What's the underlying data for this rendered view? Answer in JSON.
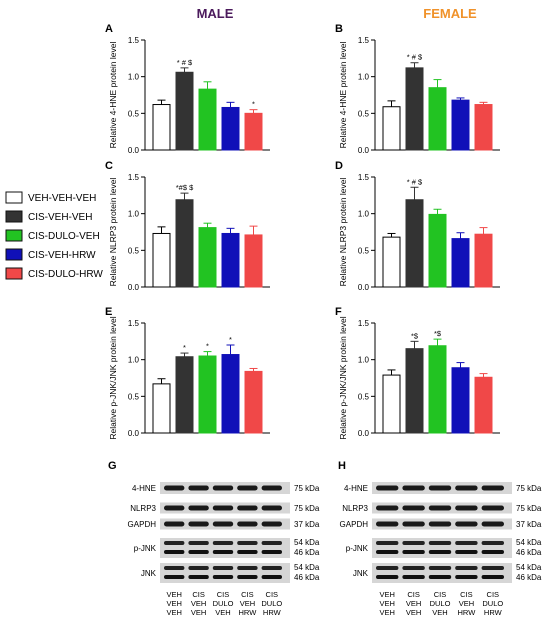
{
  "titles": {
    "male": "MALE",
    "female": "FEMALE"
  },
  "colors": {
    "male_title": "#4b1a5c",
    "female_title": "#f0922a",
    "groups": [
      "#ffffff",
      "#333333",
      "#22c322",
      "#1010b8",
      "#f04848"
    ]
  },
  "legend": [
    "VEH-VEH-VEH",
    "CIS-VEH-VEH",
    "CIS-DULO-VEH",
    "CIS-VEH-HRW",
    "CIS-DULO-HRW"
  ],
  "chart_data": [
    {
      "id": "A",
      "type": "bar",
      "sex": "male",
      "ylabel": "Relative 4-HNE protein level",
      "ylim": [
        0,
        1.5
      ],
      "ticks": [
        "0.0",
        "0.5",
        "1.0",
        "1.5"
      ],
      "categories": [
        "VEH-VEH-VEH",
        "CIS-VEH-VEH",
        "CIS-DULO-VEH",
        "CIS-VEH-HRW",
        "CIS-DULO-HRW"
      ],
      "values": [
        0.62,
        1.06,
        0.83,
        0.58,
        0.5
      ],
      "errors": [
        0.06,
        0.06,
        0.1,
        0.07,
        0.05
      ],
      "annotations": [
        "",
        "* # $",
        "",
        "",
        "*"
      ]
    },
    {
      "id": "B",
      "type": "bar",
      "sex": "female",
      "ylabel": "Relative 4-HNE protein level",
      "ylim": [
        0,
        1.5
      ],
      "ticks": [
        "0.0",
        "0.5",
        "1.0",
        "1.5"
      ],
      "categories": [
        "VEH-VEH-VEH",
        "CIS-VEH-VEH",
        "CIS-DULO-VEH",
        "CIS-VEH-HRW",
        "CIS-DULO-HRW"
      ],
      "values": [
        0.59,
        1.12,
        0.85,
        0.68,
        0.62
      ],
      "errors": [
        0.08,
        0.07,
        0.11,
        0.03,
        0.03
      ],
      "annotations": [
        "",
        "* # $",
        "",
        "",
        ""
      ]
    },
    {
      "id": "C",
      "type": "bar",
      "sex": "male",
      "ylabel": "Relative NLRP3 protein level",
      "ylim": [
        0,
        1.5
      ],
      "ticks": [
        "0.0",
        "0.5",
        "1.0",
        "1.5"
      ],
      "categories": [
        "VEH-VEH-VEH",
        "CIS-VEH-VEH",
        "CIS-DULO-VEH",
        "CIS-VEH-HRW",
        "CIS-DULO-HRW"
      ],
      "values": [
        0.73,
        1.19,
        0.81,
        0.73,
        0.71
      ],
      "errors": [
        0.09,
        0.09,
        0.06,
        0.07,
        0.12
      ],
      "annotations": [
        "",
        "*#$ $",
        "",
        "",
        ""
      ]
    },
    {
      "id": "D",
      "type": "bar",
      "sex": "female",
      "ylabel": "Relative NLRP3 protein level",
      "ylim": [
        0,
        1.5
      ],
      "ticks": [
        "0.0",
        "0.5",
        "1.0",
        "1.5"
      ],
      "categories": [
        "VEH-VEH-VEH",
        "CIS-VEH-VEH",
        "CIS-DULO-VEH",
        "CIS-VEH-HRW",
        "CIS-DULO-HRW"
      ],
      "values": [
        0.68,
        1.19,
        0.99,
        0.66,
        0.72
      ],
      "errors": [
        0.05,
        0.17,
        0.07,
        0.08,
        0.09
      ],
      "annotations": [
        "",
        "* # $",
        "",
        "",
        ""
      ]
    },
    {
      "id": "E",
      "type": "bar",
      "sex": "male",
      "ylabel": "Relative p-JNK/JNK protein level",
      "ylim": [
        0,
        1.5
      ],
      "ticks": [
        "0.0",
        "0.5",
        "1.0",
        "1.5"
      ],
      "categories": [
        "VEH-VEH-VEH",
        "CIS-VEH-VEH",
        "CIS-DULO-VEH",
        "CIS-VEH-HRW",
        "CIS-DULO-HRW"
      ],
      "values": [
        0.67,
        1.04,
        1.05,
        1.07,
        0.84
      ],
      "errors": [
        0.07,
        0.05,
        0.06,
        0.13,
        0.04
      ],
      "annotations": [
        "",
        "*",
        "*",
        "*",
        ""
      ]
    },
    {
      "id": "F",
      "type": "bar",
      "sex": "female",
      "ylabel": "Relative p-JNK/JNK protein level",
      "ylim": [
        0,
        1.5
      ],
      "ticks": [
        "0.0",
        "0.5",
        "1.0",
        "1.5"
      ],
      "categories": [
        "VEH-VEH-VEH",
        "CIS-VEH-VEH",
        "CIS-DULO-VEH",
        "CIS-VEH-HRW",
        "CIS-DULO-HRW"
      ],
      "values": [
        0.79,
        1.15,
        1.19,
        0.89,
        0.76
      ],
      "errors": [
        0.07,
        0.1,
        0.09,
        0.07,
        0.05
      ],
      "annotations": [
        "",
        "*$",
        "*$",
        "",
        ""
      ]
    }
  ],
  "blots": [
    {
      "id": "G",
      "bands": [
        "4-HNE",
        "NLRP3",
        "GAPDH",
        "p-JNK",
        "JNK"
      ],
      "kda": [
        "75 kDa",
        "75 kDa",
        "37 kDa",
        "54 kDa|46 kDa",
        "54 kDa|46 kDa"
      ],
      "lanes": [
        [
          "VEH",
          "VEH",
          "VEH"
        ],
        [
          "CIS",
          "VEH",
          "VEH"
        ],
        [
          "CIS",
          "DULO",
          "VEH"
        ],
        [
          "CIS",
          "VEH",
          "HRW"
        ],
        [
          "CIS",
          "DULO",
          "HRW"
        ]
      ]
    },
    {
      "id": "H",
      "bands": [
        "4-HNE",
        "NLRP3",
        "GAPDH",
        "p-JNK",
        "JNK"
      ],
      "kda": [
        "75 kDa",
        "75 kDa",
        "37 kDa",
        "54 kDa|46 kDa",
        "54 kDa|46 kDa"
      ],
      "lanes": [
        [
          "VEH",
          "VEH",
          "VEH"
        ],
        [
          "CIS",
          "VEH",
          "VEH"
        ],
        [
          "CIS",
          "DULO",
          "VEH"
        ],
        [
          "CIS",
          "VEH",
          "HRW"
        ],
        [
          "CIS",
          "DULO",
          "HRW"
        ]
      ]
    }
  ]
}
